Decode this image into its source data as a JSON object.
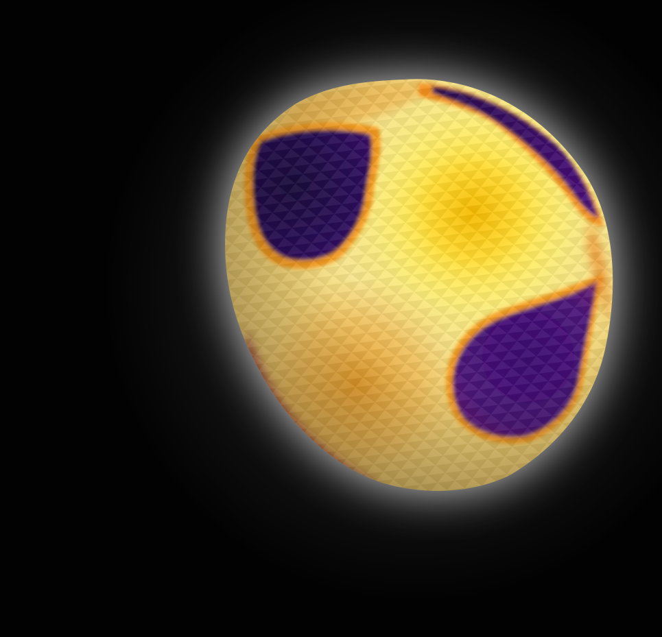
{
  "scene": {
    "subject": "deformed-sphere-surface",
    "colors": {
      "background": "#030303",
      "glow": "#ffffff",
      "surface_bright": "#fff27a",
      "surface_yellow": "#f7c21a",
      "surface_orange": "#e07a16",
      "surface_pale": "#eee2a0",
      "patch_purple": "#3b0c6e",
      "patch_deep": "#1e0840",
      "patch_edge": "#f39a1a"
    }
  }
}
